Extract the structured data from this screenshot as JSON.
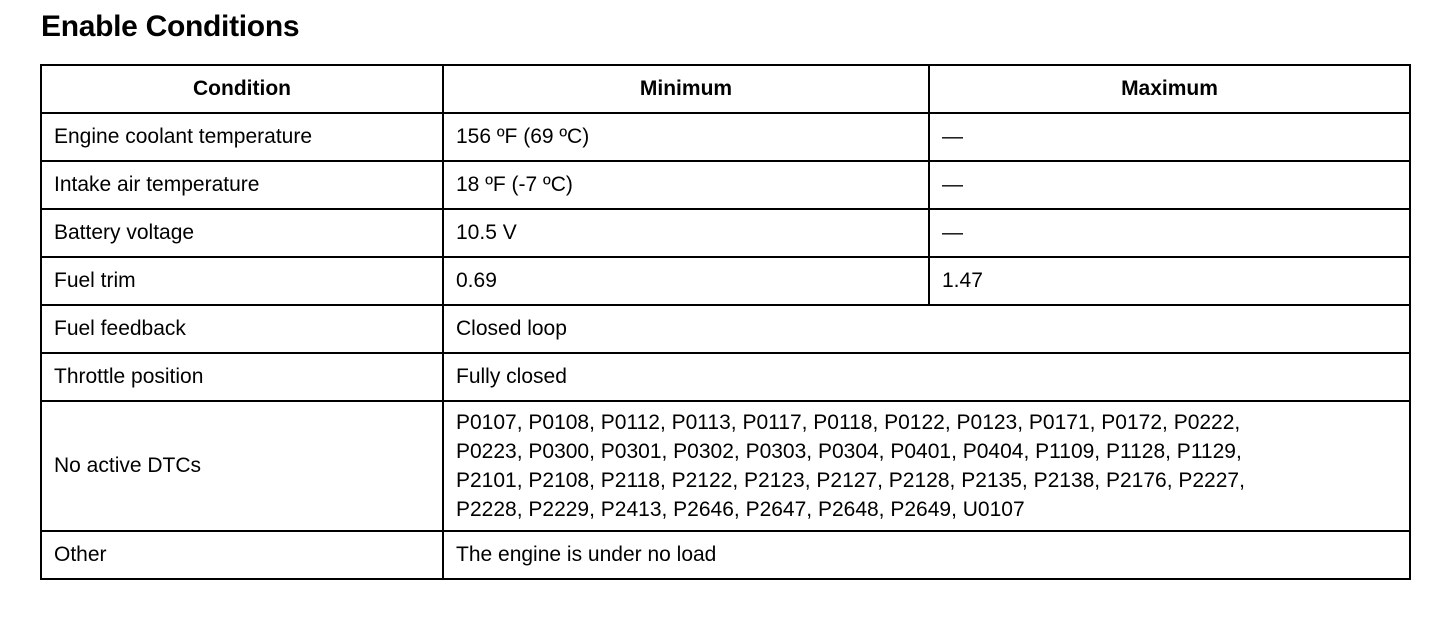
{
  "title": "Enable Conditions",
  "headers": [
    "Condition",
    "Minimum",
    "Maximum"
  ],
  "rows": [
    {
      "condition": "Engine coolant temperature",
      "minimum": "156 ºF (69 ºC)",
      "maximum": "—"
    },
    {
      "condition": "Intake air temperature",
      "minimum": "18 ºF (-7 ºC)",
      "maximum": "—"
    },
    {
      "condition": "Battery voltage",
      "minimum": "10.5 V",
      "maximum": "—"
    },
    {
      "condition": "Fuel trim",
      "minimum": "0.69",
      "maximum": "1.47"
    }
  ],
  "span_rows": [
    {
      "condition": "Fuel feedback",
      "value": "Closed loop"
    },
    {
      "condition": "Throttle position",
      "value": "Fully closed"
    },
    {
      "condition": "No active DTCs",
      "lines": [
        "P0107, P0108, P0112, P0113, P0117, P0118, P0122, P0123, P0171, P0172, P0222,",
        "P0223, P0300, P0301, P0302, P0303, P0304, P0401, P0404, P1109, P1128, P1129,",
        "P2101, P2108, P2118, P2122, P2123, P2127, P2128, P2135, P2138, P2176, P2227,",
        "P2228, P2229, P2413, P2646, P2647, P2648, P2649, U0107"
      ]
    },
    {
      "condition": "Other",
      "value": "The engine is under no load"
    }
  ]
}
